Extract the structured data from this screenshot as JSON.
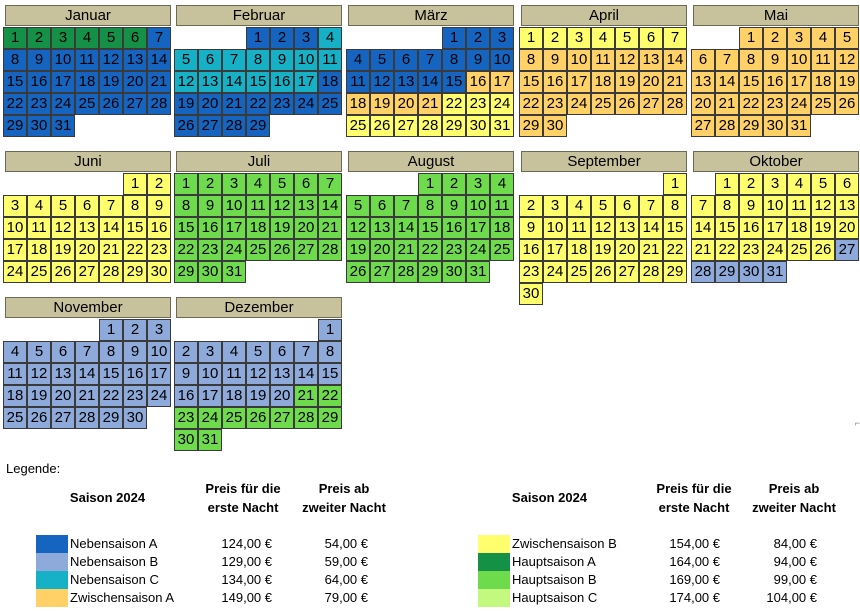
{
  "seasons": {
    "NA": {
      "label": "Nebensaison A",
      "color": "#1565c0",
      "price_first": "124,00 €",
      "price_next": "54,00 €"
    },
    "NB": {
      "label": "Nebensaison B",
      "color": "#8eaadb",
      "price_first": "129,00 €",
      "price_next": "59,00 €"
    },
    "NC": {
      "label": "Nebensaison C",
      "color": "#17b1c7",
      "price_first": "134,00 €",
      "price_next": "64,00 €"
    },
    "ZA": {
      "label": "Zwischensaison A",
      "color": "#ffd166",
      "price_first": "149,00 €",
      "price_next": "79,00 €"
    },
    "ZB": {
      "label": "Zwischensaison B",
      "color": "#ffff6e",
      "price_first": "154,00 €",
      "price_next": "84,00 €"
    },
    "HA": {
      "label": "Hauptsaison A",
      "color": "#149047",
      "price_first": "164,00 €",
      "price_next": "94,00 €"
    },
    "HB": {
      "label": "Hauptsaison B",
      "color": "#6edb4c",
      "price_first": "169,00 €",
      "price_next": "99,00 €"
    },
    "HC": {
      "label": "Hauptsaison C",
      "color": "#c2f97e",
      "price_first": "174,00 €",
      "price_next": "104,00 €"
    }
  },
  "months": [
    {
      "name": "Januar",
      "days": 31,
      "ranges": [
        [
          1,
          6,
          "HA"
        ],
        [
          7,
          31,
          "NA"
        ]
      ]
    },
    {
      "name": "Februar",
      "days": 29,
      "ranges": [
        [
          1,
          3,
          "NA"
        ],
        [
          4,
          17,
          "NC"
        ],
        [
          18,
          29,
          "NA"
        ]
      ]
    },
    {
      "name": "März",
      "days": 31,
      "ranges": [
        [
          1,
          15,
          "NA"
        ],
        [
          16,
          21,
          "ZA"
        ],
        [
          22,
          31,
          "ZB"
        ]
      ]
    },
    {
      "name": "April",
      "days": 30,
      "ranges": [
        [
          1,
          7,
          "ZB"
        ],
        [
          8,
          30,
          "ZA"
        ]
      ]
    },
    {
      "name": "Mai",
      "days": 31,
      "ranges": [
        [
          1,
          31,
          "ZA"
        ]
      ]
    },
    {
      "name": "Juni",
      "days": 30,
      "ranges": [
        [
          1,
          30,
          "ZB"
        ]
      ]
    },
    {
      "name": "Juli",
      "days": 31,
      "ranges": [
        [
          1,
          31,
          "HB"
        ]
      ]
    },
    {
      "name": "August",
      "days": 31,
      "ranges": [
        [
          1,
          31,
          "HB"
        ]
      ]
    },
    {
      "name": "September",
      "days": 30,
      "ranges": [
        [
          1,
          30,
          "ZB"
        ]
      ]
    },
    {
      "name": "Oktober",
      "days": 31,
      "ranges": [
        [
          1,
          26,
          "ZB"
        ],
        [
          27,
          31,
          "NB"
        ]
      ]
    },
    {
      "name": "November",
      "days": 30,
      "ranges": [
        [
          1,
          30,
          "NB"
        ]
      ]
    },
    {
      "name": "Dezember",
      "days": 31,
      "ranges": [
        [
          1,
          20,
          "NB"
        ],
        [
          21,
          31,
          "HB"
        ]
      ]
    }
  ],
  "legend": {
    "title": "Legende:",
    "col_season": "Saison 2024",
    "col_first_line1": "Preis für die",
    "col_first_line2": "erste Nacht",
    "col_next_line1": "Preis ab",
    "col_next_line2": "zweiter Nacht",
    "left": [
      "NA",
      "NB",
      "NC",
      "ZA"
    ],
    "right": [
      "ZB",
      "HA",
      "HB",
      "HC"
    ]
  },
  "corner_mark": "⌐"
}
